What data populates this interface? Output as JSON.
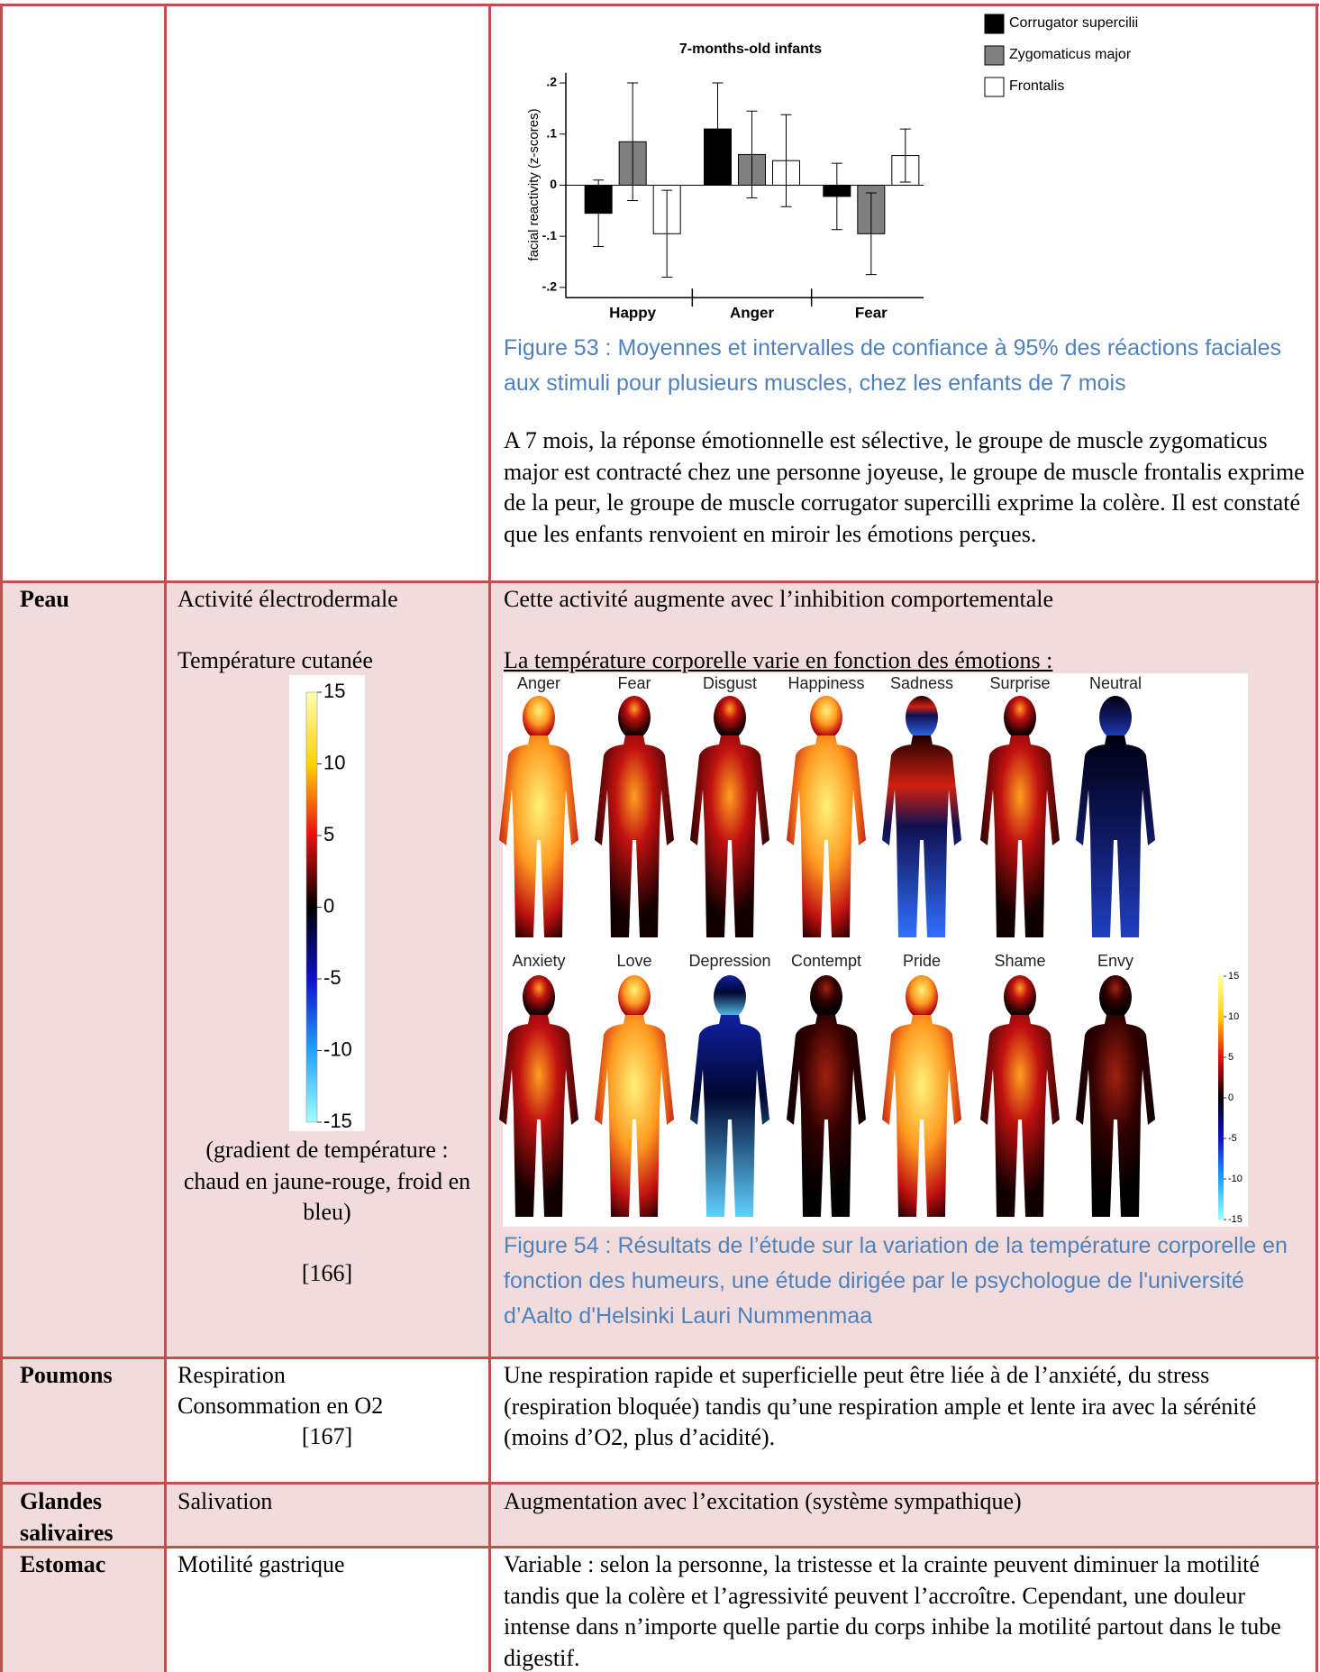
{
  "table": {
    "rows": [
      {
        "chart": {
          "type": "bar",
          "title": "7-months-old infants",
          "y_label": "facial reactivity (z-scores)",
          "categories": [
            "Happy",
            "Anger",
            "Fear"
          ],
          "series": [
            {
              "name": "Corrugator supercilii",
              "color": "#000000",
              "values": [
                -0.055,
                0.11,
                -0.022
              ],
              "errors": [
                0.065,
                0.09,
                0.065
              ]
            },
            {
              "name": "Zygomaticus major",
              "color": "#808080",
              "values": [
                0.085,
                0.06,
                -0.095
              ],
              "errors": [
                0.115,
                0.085,
                0.08
              ]
            },
            {
              "name": "Frontalis",
              "color": "#ffffff",
              "values": [
                -0.095,
                0.048,
                0.058
              ],
              "errors": [
                0.085,
                0.09,
                0.052
              ]
            }
          ],
          "ylim": [
            -0.22,
            0.22
          ],
          "yticks": [
            {
              "value": 0.2,
              "label": ".2"
            },
            {
              "value": 0.1,
              "label": ".1"
            },
            0,
            {
              "value": -0.1,
              "label": "-.1"
            },
            {
              "value": -0.2,
              "label": "-.2"
            }
          ]
        },
        "caption": "Figure 53 : Moyennes et intervalles de confiance à 95% des réactions faciales aux stimuli pour plusieurs muscles, chez les enfants de 7 mois",
        "text": "A 7 mois, la réponse émotionnelle est sélective, le groupe de muscle zygomaticus major est contracté chez une personne joyeuse, le groupe de muscle frontalis exprime de la peur, le groupe de muscle corrugator supercilli exprime la colère. Il est constaté que les enfants renvoient en miroir les émotions perçues."
      },
      {
        "organ": "Peau",
        "measures": [
          "Activité électrodermale",
          "Température cutanée"
        ],
        "scale_ticks": [
          15,
          10,
          5,
          0,
          -5,
          -10,
          -15
        ],
        "note": "(gradient de température : chaud en jaune-rouge, froid en bleu)",
        "reference": "[166]",
        "texts": [
          "Cette activité augmente avec l’inhibition comportementale",
          "La température corporelle varie en fonction des émotions :"
        ],
        "figure": {
          "labels": [
            "Anger",
            "Fear",
            "Disgust",
            "Happiness",
            "Sadness",
            "Surprise",
            "Neutral",
            "Anxiety",
            "Love",
            "Depression",
            "Contempt",
            "Pride",
            "Shame",
            "Envy"
          ],
          "scale_ticks": [
            15,
            10,
            5,
            0,
            -5,
            -10,
            -15
          ]
        },
        "caption": "Figure 54 : Résultats de l’étude sur la variation de la température corporelle en fonction des humeurs, une étude dirigée par le psychologue de l'université d’Aalto d'Helsinki Lauri Nummenmaa"
      },
      {
        "organ": "Poumons",
        "measures": [
          "Respiration",
          "Consommation en O2"
        ],
        "reference": "[167]",
        "text": "Une respiration rapide et superficielle peut être liée à de l’anxiété, du stress (respiration bloquée) tandis qu’une respiration ample et lente ira avec  la sérénité (moins d’O2, plus d’acidité)."
      },
      {
        "organ": "Glandes salivaires",
        "measures": [
          "Salivation"
        ],
        "text": "Augmentation avec l’excitation (système sympathique)"
      },
      {
        "organ": "Estomac",
        "measures": [
          "Motilité gastrique"
        ],
        "text": "Variable : selon la personne, la tristesse et la crainte peuvent diminuer la motilité tandis que la colère et l’agressivité peuvent l’accroître. Cependant, une douleur intense dans n’importe quelle partie du corps inhibe la motilité partout dans le tube digestif."
      }
    ]
  }
}
